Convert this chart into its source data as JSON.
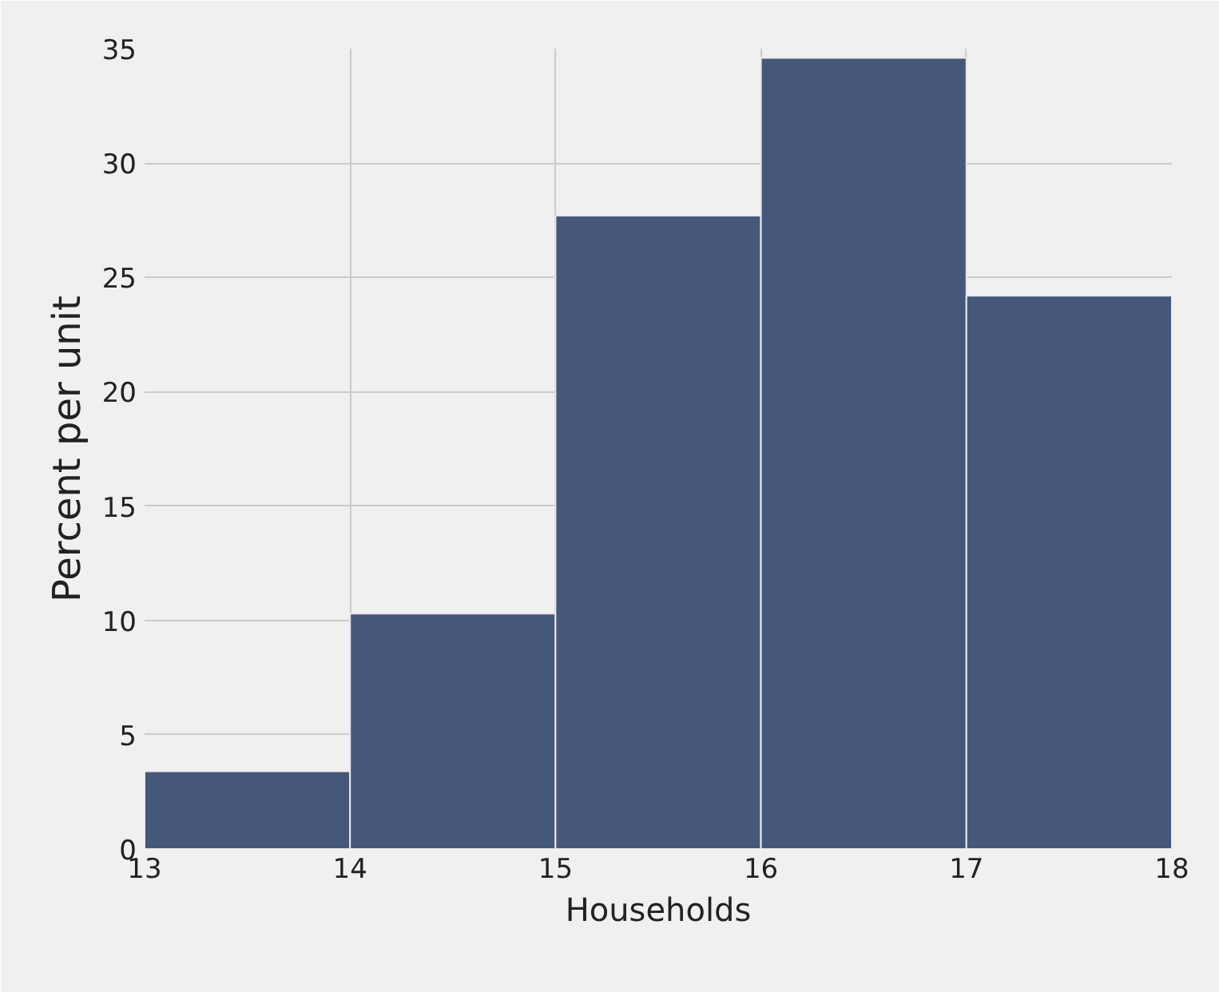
{
  "chart_data": {
    "type": "histogram",
    "xlabel": "Households",
    "ylabel": "Percent per unit",
    "bins": [
      13,
      14,
      15,
      16,
      17,
      18
    ],
    "values": [
      3.4,
      10.3,
      27.7,
      34.6,
      24.2
    ],
    "color": "#45587a",
    "xlim": [
      13,
      18
    ],
    "ylim": [
      0,
      35
    ],
    "xticks": [
      13,
      14,
      15,
      16,
      17,
      18
    ],
    "yticks": [
      0,
      5,
      10,
      15,
      20,
      25,
      30,
      35
    ],
    "grid": true
  }
}
